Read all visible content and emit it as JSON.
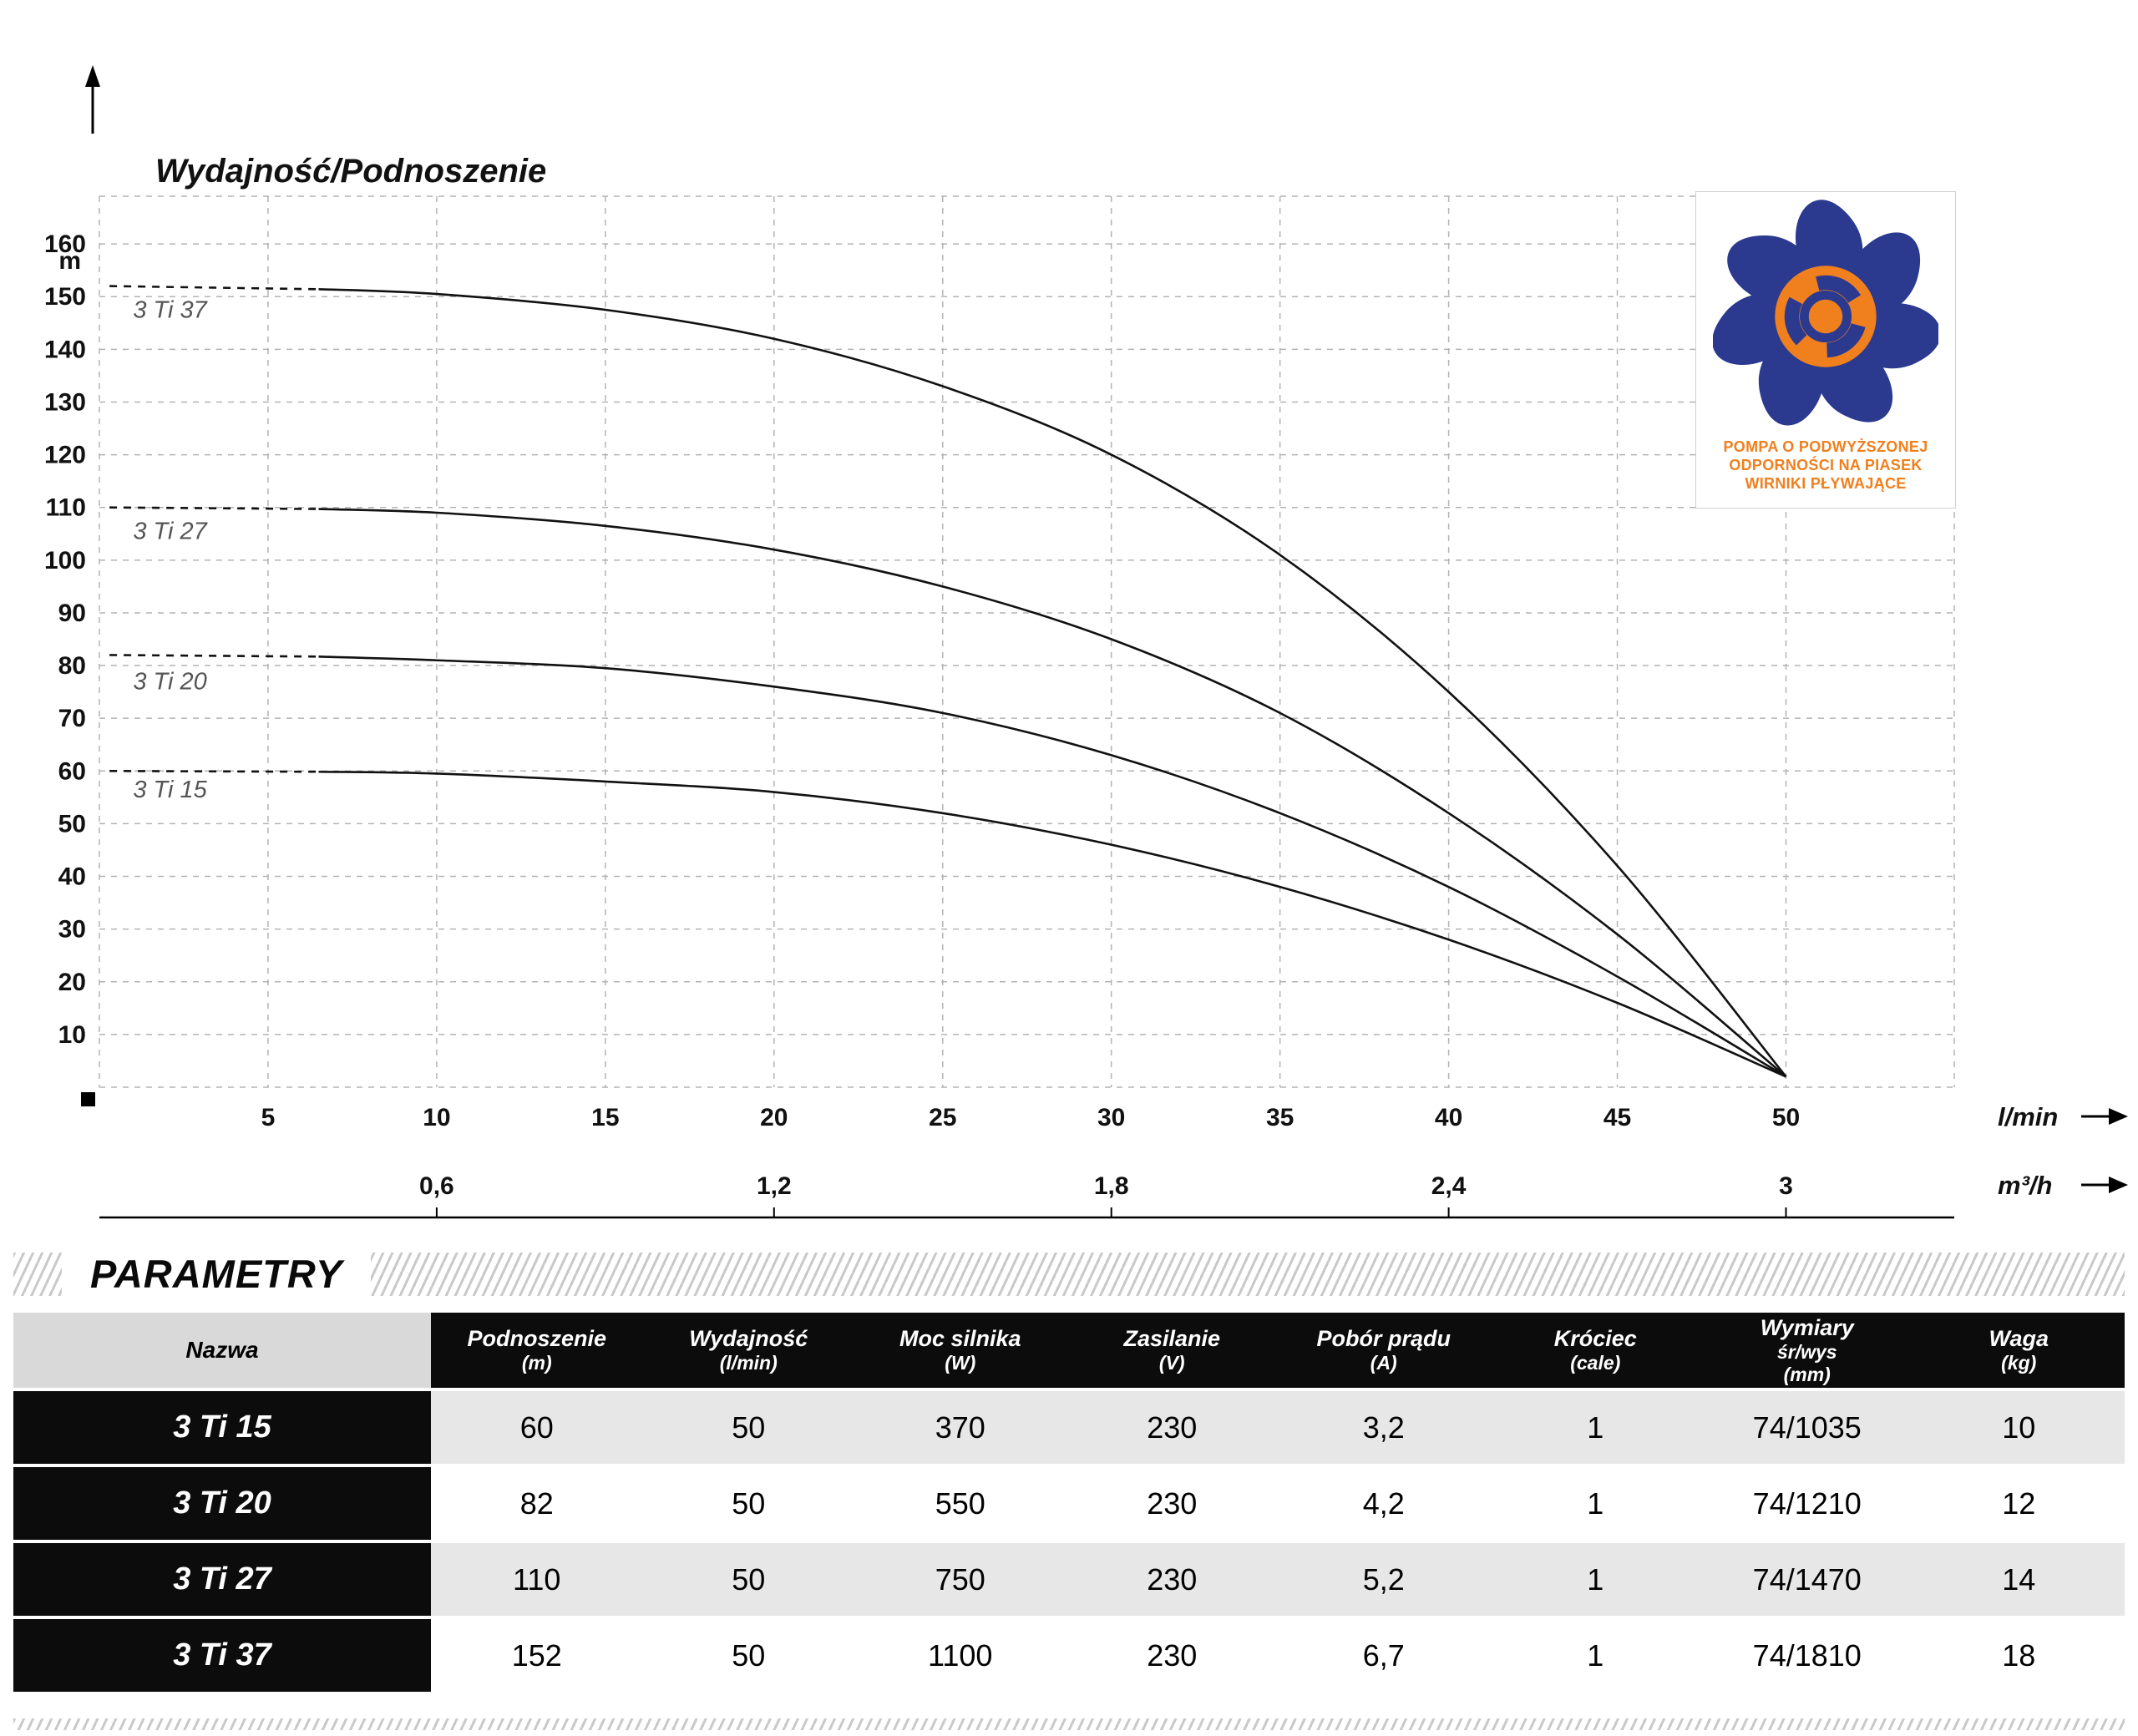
{
  "chart_data": {
    "type": "line",
    "title": "Wydajność/Podnoszenie",
    "line_color": "#111111",
    "grid": true,
    "y_axis": {
      "unit": "m",
      "ticks": [
        10,
        20,
        30,
        40,
        50,
        60,
        70,
        80,
        90,
        100,
        110,
        120,
        130,
        140,
        150,
        160
      ],
      "range": [
        0,
        169
      ]
    },
    "x_axis_primary": {
      "label": "l/min",
      "ticks": [
        5,
        10,
        15,
        20,
        25,
        30,
        35,
        40,
        45,
        50
      ]
    },
    "x_axis_secondary": {
      "label": "m³/h",
      "ticks": [
        {
          "label": "0,6",
          "at_lmin": 10
        },
        {
          "label": "1,2",
          "at_lmin": 20
        },
        {
          "label": "1,8",
          "at_lmin": 30
        },
        {
          "label": "2,4",
          "at_lmin": 40
        },
        {
          "label": "3",
          "at_lmin": 50
        }
      ]
    },
    "series": [
      {
        "name": "3 Ti 37",
        "dash_until_lmin": 6.5,
        "label_at": [
          1,
          146
        ],
        "points": [
          [
            0,
            152
          ],
          [
            5,
            151.8
          ],
          [
            10,
            150.5
          ],
          [
            15,
            147.5
          ],
          [
            20,
            142
          ],
          [
            25,
            133
          ],
          [
            30,
            120
          ],
          [
            35,
            101
          ],
          [
            40,
            75
          ],
          [
            45,
            42
          ],
          [
            50,
            2
          ]
        ]
      },
      {
        "name": "3 Ti 27",
        "dash_until_lmin": 6.5,
        "label_at": [
          1,
          104
        ],
        "points": [
          [
            0,
            110
          ],
          [
            5,
            110
          ],
          [
            10,
            109
          ],
          [
            15,
            106.5
          ],
          [
            20,
            102
          ],
          [
            25,
            95
          ],
          [
            30,
            85
          ],
          [
            35,
            71
          ],
          [
            40,
            52
          ],
          [
            45,
            29
          ],
          [
            50,
            2
          ]
        ]
      },
      {
        "name": "3 Ti 20",
        "dash_until_lmin": 6.5,
        "label_at": [
          1,
          75.5
        ],
        "points": [
          [
            0,
            82
          ],
          [
            5,
            82
          ],
          [
            10,
            81
          ],
          [
            15,
            79.5
          ],
          [
            20,
            76
          ],
          [
            25,
            71
          ],
          [
            30,
            63
          ],
          [
            35,
            52
          ],
          [
            40,
            38
          ],
          [
            45,
            21
          ],
          [
            50,
            2
          ]
        ]
      },
      {
        "name": "3 Ti 15",
        "dash_until_lmin": 6.5,
        "label_at": [
          1,
          55
        ],
        "points": [
          [
            0,
            60
          ],
          [
            5,
            60
          ],
          [
            10,
            59.5
          ],
          [
            15,
            58
          ],
          [
            20,
            56
          ],
          [
            25,
            52
          ],
          [
            30,
            46
          ],
          [
            35,
            38
          ],
          [
            40,
            28
          ],
          [
            45,
            16
          ],
          [
            50,
            2
          ]
        ]
      }
    ]
  },
  "logo": {
    "caption": [
      "POMPA O PODWYŻSZONEJ",
      "ODPORNOŚCI NA PIASEK",
      "WIRNIKI PŁYWAJĄCE"
    ],
    "colors": {
      "orange": "#f07f1d",
      "navy": "#2b3a8f"
    }
  },
  "parameters": {
    "heading": "PARAMETRY",
    "columns": [
      {
        "lines": [
          "Nazwa"
        ]
      },
      {
        "lines": [
          "Podnoszenie",
          "(m)"
        ]
      },
      {
        "lines": [
          "Wydajność",
          "(l/min)"
        ]
      },
      {
        "lines": [
          "Moc silnika",
          "(W)"
        ]
      },
      {
        "lines": [
          "Zasilanie",
          "(V)"
        ]
      },
      {
        "lines": [
          "Pobór prądu",
          "(A)"
        ]
      },
      {
        "lines": [
          "Króciec",
          "(cale)"
        ]
      },
      {
        "lines": [
          "Wymiary",
          "śr/wys",
          "(mm)"
        ]
      },
      {
        "lines": [
          "Waga",
          "(kg)"
        ]
      }
    ],
    "rows": [
      {
        "name": "3 Ti 15",
        "values": [
          "60",
          "50",
          "370",
          "230",
          "3,2",
          "1",
          "74/1035",
          "10"
        ]
      },
      {
        "name": "3 Ti 20",
        "values": [
          "82",
          "50",
          "550",
          "230",
          "4,2",
          "1",
          "74/1210",
          "12"
        ]
      },
      {
        "name": "3 Ti 27",
        "values": [
          "110",
          "50",
          "750",
          "230",
          "5,2",
          "1",
          "74/1470",
          "14"
        ]
      },
      {
        "name": "3 Ti 37",
        "values": [
          "152",
          "50",
          "1100",
          "230",
          "6,7",
          "1",
          "74/1810",
          "18"
        ]
      }
    ]
  }
}
